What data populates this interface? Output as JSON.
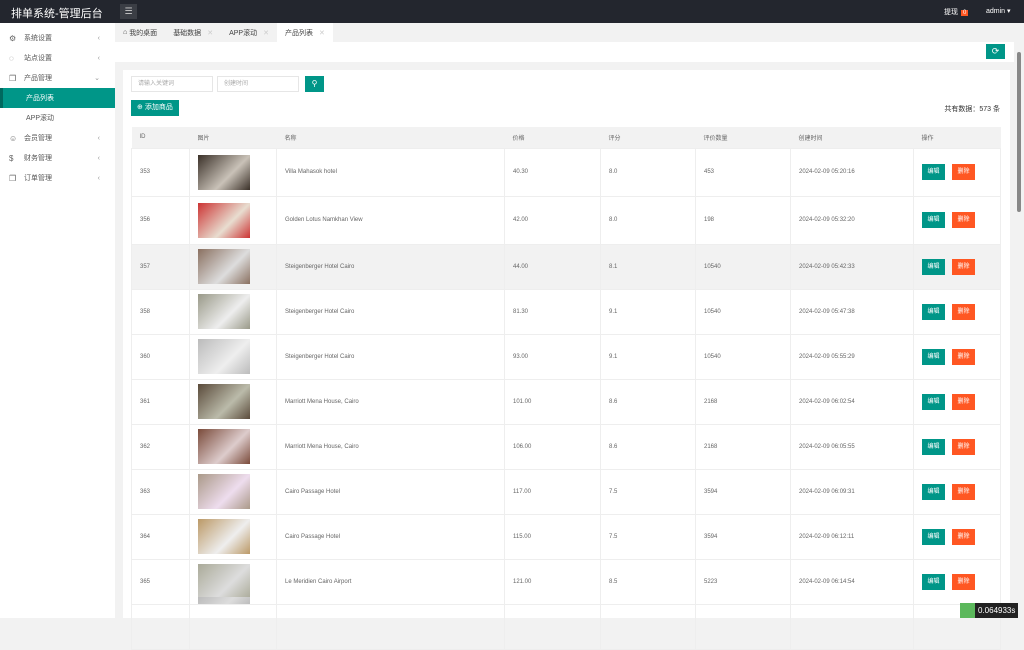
{
  "header": {
    "title": "排单系统-管理后台",
    "menu_icon": "list-icon",
    "withdraw_label": "提现",
    "withdraw_count": "0",
    "user": "admin"
  },
  "sidebar": {
    "items": [
      {
        "label": "系统设置",
        "icon": "gear-icon",
        "chev": "<"
      },
      {
        "label": "站点设置",
        "icon": "refresh-icon",
        "chev": "<"
      },
      {
        "label": "产品管理",
        "icon": "box-icon",
        "chev": "v"
      },
      {
        "label": "产品列表",
        "sub": true,
        "active": true
      },
      {
        "label": "APP滚动",
        "sub": true
      },
      {
        "label": "会员管理",
        "icon": "user-icon",
        "chev": "<"
      },
      {
        "label": "财务管理",
        "icon": "dollar-icon",
        "chev": "<"
      },
      {
        "label": "订单管理",
        "icon": "order-icon",
        "chev": "<"
      }
    ]
  },
  "tabs": [
    {
      "label": "我的桌面",
      "home": true
    },
    {
      "label": "基础数据",
      "close": true
    },
    {
      "label": "APP滚动",
      "close": true
    },
    {
      "label": "产品列表",
      "close": true,
      "active": true
    }
  ],
  "search": {
    "keyword_placeholder": "请输入关键词",
    "date_placeholder": "创建时间"
  },
  "add_label": "添加商品",
  "total_text": "共有数据：573 条",
  "table": {
    "columns": [
      "ID",
      "图片",
      "名称",
      "价格",
      "评分",
      "评价数量",
      "创建时间",
      "操作"
    ],
    "edit_label": "编辑",
    "delete_label": "删除",
    "rows": [
      {
        "id": "353",
        "name": "Villa Mahasok hotel",
        "price": "40.30",
        "score": "8.0",
        "reviews": "453",
        "time": "2024-02-09 05:20:16"
      },
      {
        "id": "356",
        "name": "Golden Lotus Namkhan View",
        "price": "42.00",
        "score": "8.0",
        "reviews": "198",
        "time": "2024-02-09 05:32:20"
      },
      {
        "id": "357",
        "name": "Steigenberger Hotel Cairo",
        "price": "44.00",
        "score": "8.1",
        "reviews": "10540",
        "time": "2024-02-09 05:42:33"
      },
      {
        "id": "358",
        "name": "Steigenberger Hotel Cairo",
        "price": "81.30",
        "score": "9.1",
        "reviews": "10540",
        "time": "2024-02-09 05:47:38"
      },
      {
        "id": "360",
        "name": "Steigenberger Hotel Cairo",
        "price": "93.00",
        "score": "9.1",
        "reviews": "10540",
        "time": "2024-02-09 05:55:29"
      },
      {
        "id": "361",
        "name": "Marriott Mena House, Cairo",
        "price": "101.00",
        "score": "8.6",
        "reviews": "2168",
        "time": "2024-02-09 06:02:54"
      },
      {
        "id": "362",
        "name": "Marriott Mena House, Cairo",
        "price": "106.00",
        "score": "8.6",
        "reviews": "2168",
        "time": "2024-02-09 06:05:55"
      },
      {
        "id": "363",
        "name": "Cairo Passage Hotel",
        "price": "117.00",
        "score": "7.5",
        "reviews": "3594",
        "time": "2024-02-09 06:09:31"
      },
      {
        "id": "364",
        "name": "Cairo Passage Hotel",
        "price": "115.00",
        "score": "7.5",
        "reviews": "3594",
        "time": "2024-02-09 06:12:11"
      },
      {
        "id": "365",
        "name": "Le Meridien Cairo Airport",
        "price": "121.00",
        "score": "8.5",
        "reviews": "5223",
        "time": "2024-02-09 06:14:54"
      },
      {
        "id": "",
        "name": "",
        "price": "",
        "score": "",
        "reviews": "",
        "time": ""
      }
    ]
  },
  "debug_timer": "0.064933s",
  "colors": {
    "primary": "#009688",
    "danger": "#ff5722",
    "topbar": "#23262e"
  }
}
